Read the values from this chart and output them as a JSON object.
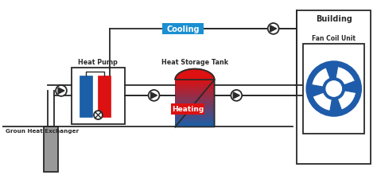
{
  "bg_color": "#ffffff",
  "line_color": "#2a2a2a",
  "blue_color": "#1a5fa8",
  "red_color": "#dd1111",
  "cooling_box_color": "#1a8fd1",
  "heating_box_color": "#dd1111",
  "fan_coil_blue": "#1e5baa",
  "ground_gray": "#999999",
  "labels": {
    "building": "Building",
    "fan_coil": "Fan Coil Unit",
    "heat_pump": "Heat Pump",
    "heat_storage": "Heat Storage Tank",
    "cooling": "Cooling",
    "heating": "Heating",
    "ground_exchanger": "Groun Heat Exchanger"
  },
  "figsize": [
    4.74,
    2.26
  ],
  "dpi": 100,
  "xlim": [
    0,
    474
  ],
  "ylim": [
    0,
    226
  ]
}
